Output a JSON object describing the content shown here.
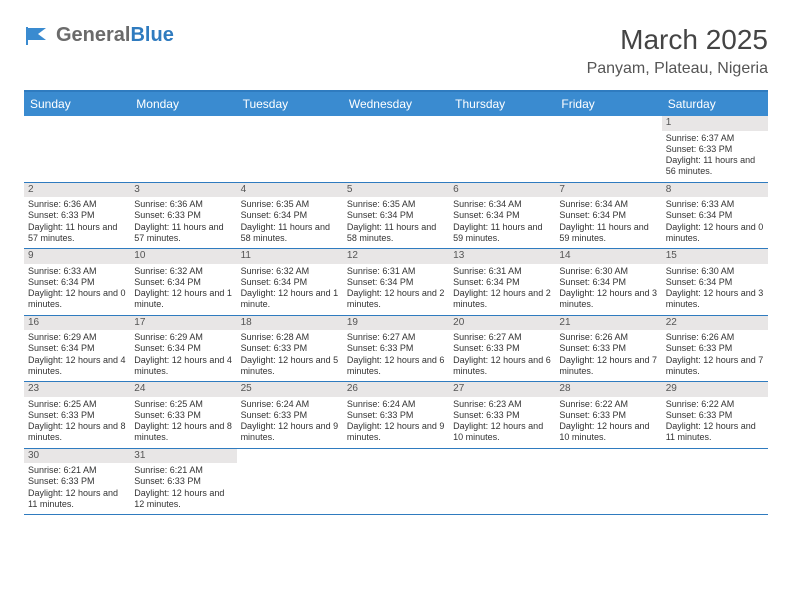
{
  "logo": {
    "part1": "General",
    "part2": "Blue"
  },
  "title": "March 2025",
  "location": "Panyam, Plateau, Nigeria",
  "dayNames": [
    "Sunday",
    "Monday",
    "Tuesday",
    "Wednesday",
    "Thursday",
    "Friday",
    "Saturday"
  ],
  "colors": {
    "headerBg": "#3a8bd0",
    "borderBlue": "#2f7bbf",
    "dayNumBg": "#e8e6e6"
  },
  "weeks": [
    [
      {
        "empty": true
      },
      {
        "empty": true
      },
      {
        "empty": true
      },
      {
        "empty": true
      },
      {
        "empty": true
      },
      {
        "empty": true
      },
      {
        "day": "1",
        "sunrise": "Sunrise: 6:37 AM",
        "sunset": "Sunset: 6:33 PM",
        "daylight": "Daylight: 11 hours and 56 minutes."
      }
    ],
    [
      {
        "day": "2",
        "sunrise": "Sunrise: 6:36 AM",
        "sunset": "Sunset: 6:33 PM",
        "daylight": "Daylight: 11 hours and 57 minutes."
      },
      {
        "day": "3",
        "sunrise": "Sunrise: 6:36 AM",
        "sunset": "Sunset: 6:33 PM",
        "daylight": "Daylight: 11 hours and 57 minutes."
      },
      {
        "day": "4",
        "sunrise": "Sunrise: 6:35 AM",
        "sunset": "Sunset: 6:34 PM",
        "daylight": "Daylight: 11 hours and 58 minutes."
      },
      {
        "day": "5",
        "sunrise": "Sunrise: 6:35 AM",
        "sunset": "Sunset: 6:34 PM",
        "daylight": "Daylight: 11 hours and 58 minutes."
      },
      {
        "day": "6",
        "sunrise": "Sunrise: 6:34 AM",
        "sunset": "Sunset: 6:34 PM",
        "daylight": "Daylight: 11 hours and 59 minutes."
      },
      {
        "day": "7",
        "sunrise": "Sunrise: 6:34 AM",
        "sunset": "Sunset: 6:34 PM",
        "daylight": "Daylight: 11 hours and 59 minutes."
      },
      {
        "day": "8",
        "sunrise": "Sunrise: 6:33 AM",
        "sunset": "Sunset: 6:34 PM",
        "daylight": "Daylight: 12 hours and 0 minutes."
      }
    ],
    [
      {
        "day": "9",
        "sunrise": "Sunrise: 6:33 AM",
        "sunset": "Sunset: 6:34 PM",
        "daylight": "Daylight: 12 hours and 0 minutes."
      },
      {
        "day": "10",
        "sunrise": "Sunrise: 6:32 AM",
        "sunset": "Sunset: 6:34 PM",
        "daylight": "Daylight: 12 hours and 1 minute."
      },
      {
        "day": "11",
        "sunrise": "Sunrise: 6:32 AM",
        "sunset": "Sunset: 6:34 PM",
        "daylight": "Daylight: 12 hours and 1 minute."
      },
      {
        "day": "12",
        "sunrise": "Sunrise: 6:31 AM",
        "sunset": "Sunset: 6:34 PM",
        "daylight": "Daylight: 12 hours and 2 minutes."
      },
      {
        "day": "13",
        "sunrise": "Sunrise: 6:31 AM",
        "sunset": "Sunset: 6:34 PM",
        "daylight": "Daylight: 12 hours and 2 minutes."
      },
      {
        "day": "14",
        "sunrise": "Sunrise: 6:30 AM",
        "sunset": "Sunset: 6:34 PM",
        "daylight": "Daylight: 12 hours and 3 minutes."
      },
      {
        "day": "15",
        "sunrise": "Sunrise: 6:30 AM",
        "sunset": "Sunset: 6:34 PM",
        "daylight": "Daylight: 12 hours and 3 minutes."
      }
    ],
    [
      {
        "day": "16",
        "sunrise": "Sunrise: 6:29 AM",
        "sunset": "Sunset: 6:34 PM",
        "daylight": "Daylight: 12 hours and 4 minutes."
      },
      {
        "day": "17",
        "sunrise": "Sunrise: 6:29 AM",
        "sunset": "Sunset: 6:34 PM",
        "daylight": "Daylight: 12 hours and 4 minutes."
      },
      {
        "day": "18",
        "sunrise": "Sunrise: 6:28 AM",
        "sunset": "Sunset: 6:33 PM",
        "daylight": "Daylight: 12 hours and 5 minutes."
      },
      {
        "day": "19",
        "sunrise": "Sunrise: 6:27 AM",
        "sunset": "Sunset: 6:33 PM",
        "daylight": "Daylight: 12 hours and 6 minutes."
      },
      {
        "day": "20",
        "sunrise": "Sunrise: 6:27 AM",
        "sunset": "Sunset: 6:33 PM",
        "daylight": "Daylight: 12 hours and 6 minutes."
      },
      {
        "day": "21",
        "sunrise": "Sunrise: 6:26 AM",
        "sunset": "Sunset: 6:33 PM",
        "daylight": "Daylight: 12 hours and 7 minutes."
      },
      {
        "day": "22",
        "sunrise": "Sunrise: 6:26 AM",
        "sunset": "Sunset: 6:33 PM",
        "daylight": "Daylight: 12 hours and 7 minutes."
      }
    ],
    [
      {
        "day": "23",
        "sunrise": "Sunrise: 6:25 AM",
        "sunset": "Sunset: 6:33 PM",
        "daylight": "Daylight: 12 hours and 8 minutes."
      },
      {
        "day": "24",
        "sunrise": "Sunrise: 6:25 AM",
        "sunset": "Sunset: 6:33 PM",
        "daylight": "Daylight: 12 hours and 8 minutes."
      },
      {
        "day": "25",
        "sunrise": "Sunrise: 6:24 AM",
        "sunset": "Sunset: 6:33 PM",
        "daylight": "Daylight: 12 hours and 9 minutes."
      },
      {
        "day": "26",
        "sunrise": "Sunrise: 6:24 AM",
        "sunset": "Sunset: 6:33 PM",
        "daylight": "Daylight: 12 hours and 9 minutes."
      },
      {
        "day": "27",
        "sunrise": "Sunrise: 6:23 AM",
        "sunset": "Sunset: 6:33 PM",
        "daylight": "Daylight: 12 hours and 10 minutes."
      },
      {
        "day": "28",
        "sunrise": "Sunrise: 6:22 AM",
        "sunset": "Sunset: 6:33 PM",
        "daylight": "Daylight: 12 hours and 10 minutes."
      },
      {
        "day": "29",
        "sunrise": "Sunrise: 6:22 AM",
        "sunset": "Sunset: 6:33 PM",
        "daylight": "Daylight: 12 hours and 11 minutes."
      }
    ],
    [
      {
        "day": "30",
        "sunrise": "Sunrise: 6:21 AM",
        "sunset": "Sunset: 6:33 PM",
        "daylight": "Daylight: 12 hours and 11 minutes."
      },
      {
        "day": "31",
        "sunrise": "Sunrise: 6:21 AM",
        "sunset": "Sunset: 6:33 PM",
        "daylight": "Daylight: 12 hours and 12 minutes."
      },
      {
        "empty": true
      },
      {
        "empty": true
      },
      {
        "empty": true
      },
      {
        "empty": true
      },
      {
        "empty": true
      }
    ]
  ]
}
